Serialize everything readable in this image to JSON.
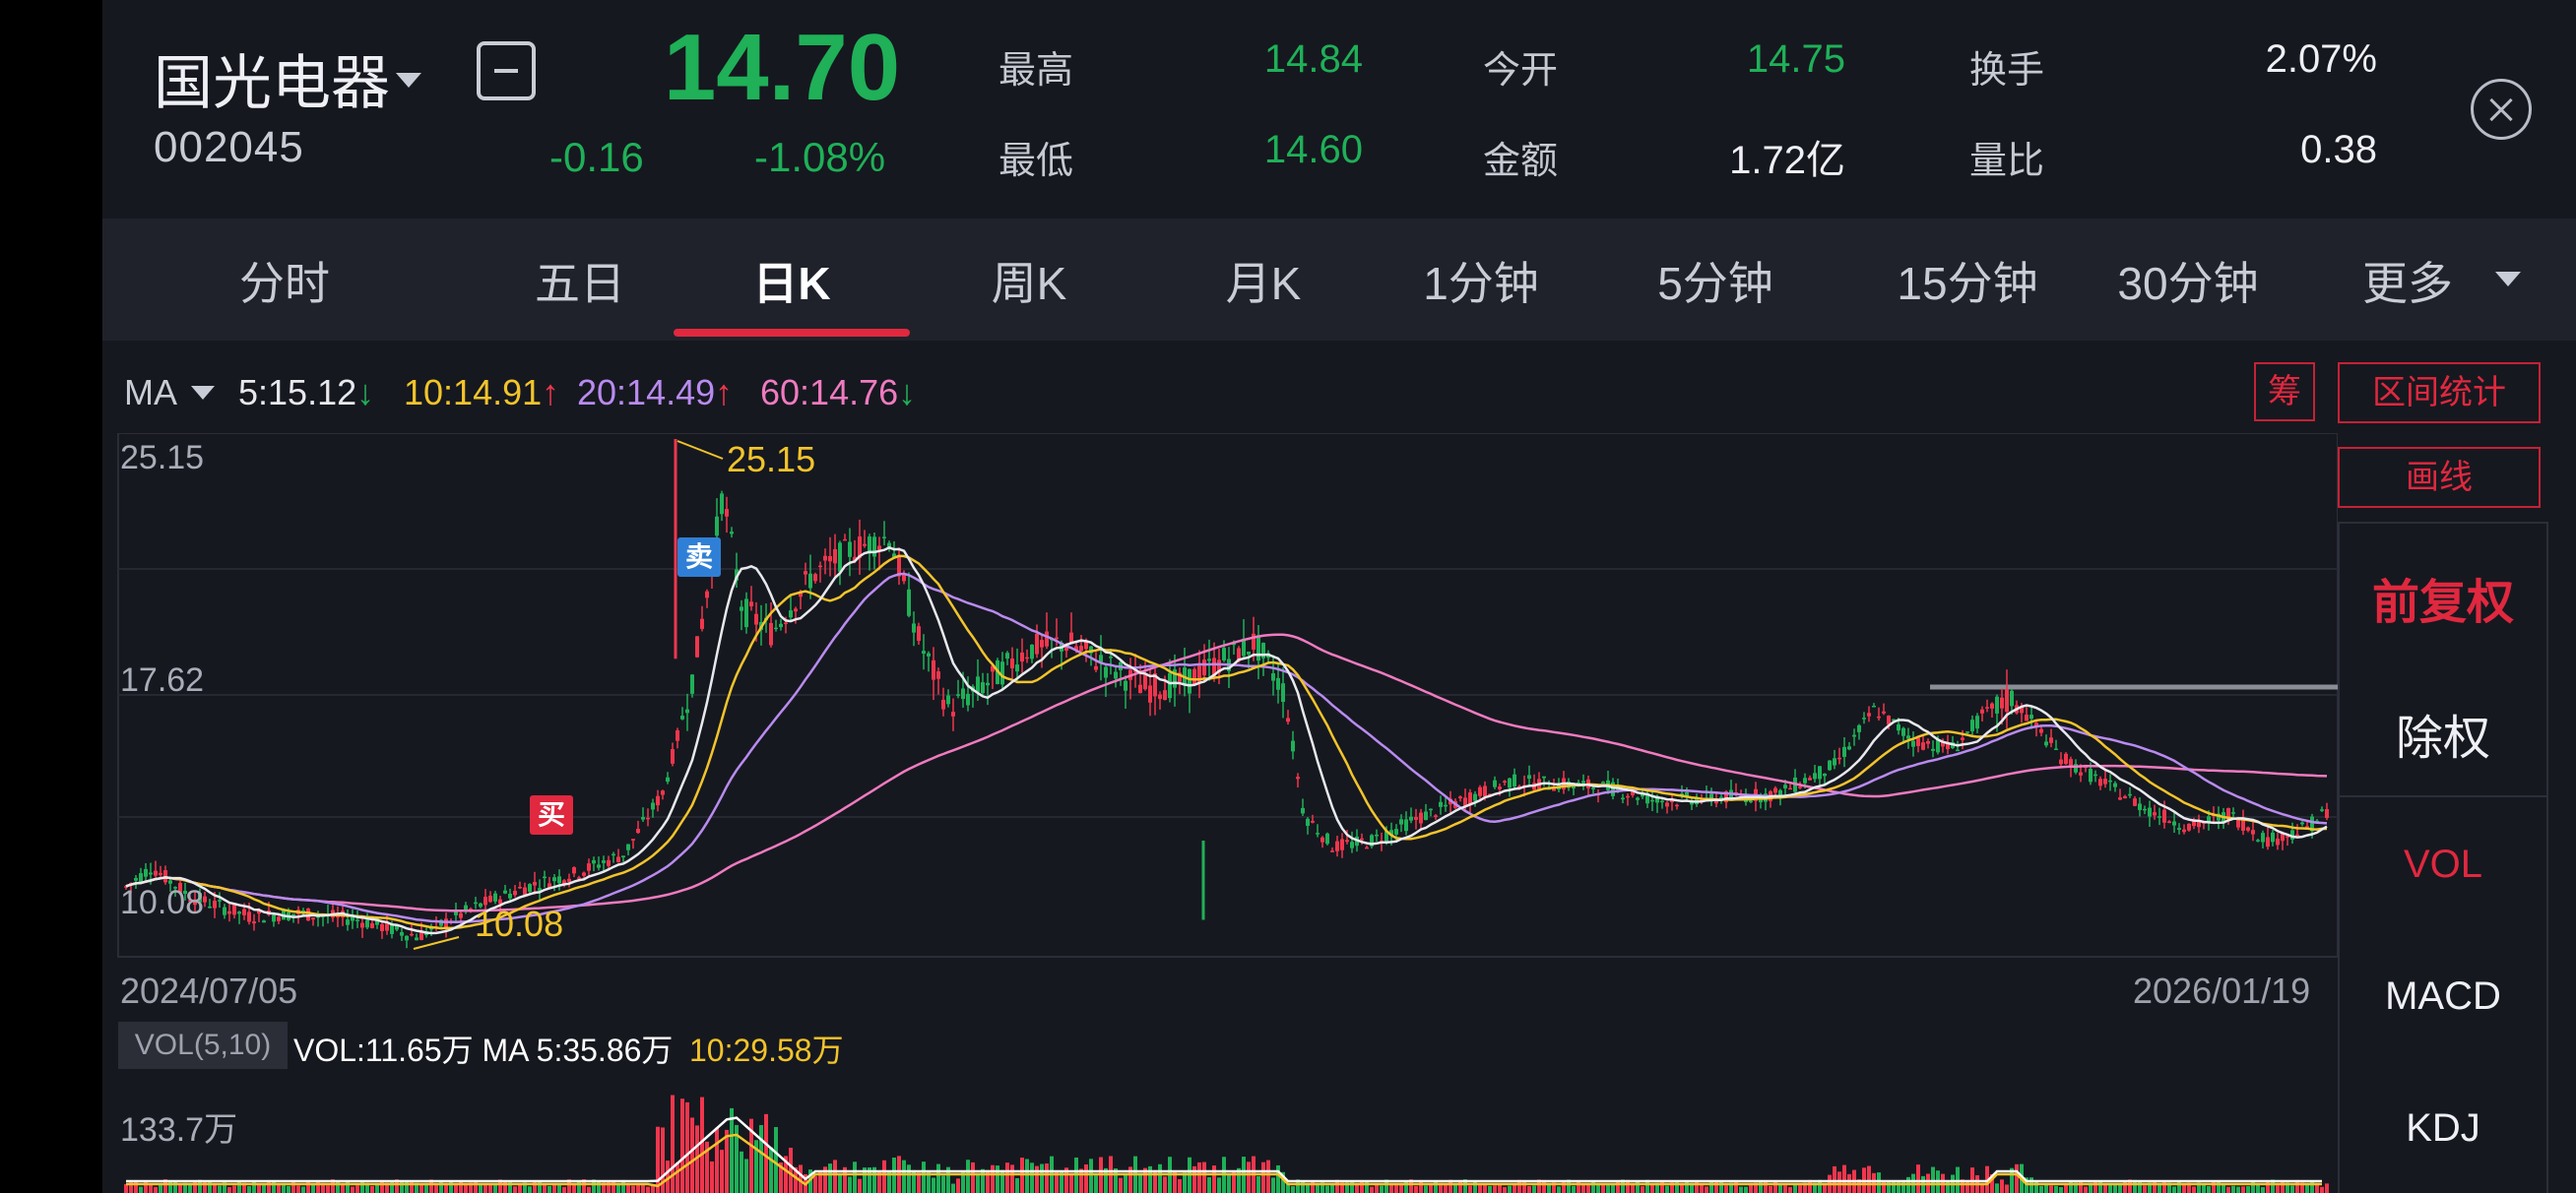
{
  "header": {
    "name": "国光电器",
    "code": "002045",
    "price": "14.70",
    "change": "-0.16",
    "change_pct": "-1.08%",
    "quotes": {
      "high_label": "最高",
      "high": "14.84",
      "low_label": "最低",
      "low": "14.60",
      "open_label": "今开",
      "open": "14.75",
      "amount_label": "金额",
      "amount": "1.72亿",
      "turnover_label": "换手",
      "turnover": "2.07%",
      "vol_ratio_label": "量比",
      "vol_ratio": "0.38"
    }
  },
  "tabs": [
    "分时",
    "五日",
    "日K",
    "周K",
    "月K",
    "1分钟",
    "5分钟",
    "15分钟",
    "30分钟",
    "更多"
  ],
  "active_tab": "日K",
  "ma": {
    "label": "MA",
    "ma5": "5:15.12",
    "ma5_arrow": "↓",
    "ma10": "10:14.91",
    "ma10_arrow": "↑",
    "ma20": "20:14.49",
    "ma20_arrow": "↑",
    "ma60": "60:14.76",
    "ma60_arrow": "↓"
  },
  "side": {
    "chips": "筹",
    "range_stats": "区间统计",
    "draw_line": "画线",
    "adjust_forward": "前复权",
    "ex_rights": "除权",
    "vol": "VOL",
    "macd": "MACD",
    "kdj": "KDJ"
  },
  "chart": {
    "y_top": "25.15",
    "y_mid": "17.62",
    "y_bottom": "10.08",
    "max_marker": "25.15",
    "min_marker": "10.08",
    "buy": "买",
    "sell": "卖",
    "date_start": "2024/07/05",
    "date_end": "2026/01/19"
  },
  "volume": {
    "legend": "VOL(5,10)",
    "main": "VOL:11.65万 MA 5:35.86万",
    "ma10": "10:29.58万",
    "axis": "133.7万"
  },
  "colors": {
    "up": "#f0364d",
    "down": "#1fb058",
    "ma5": "#e8e9ee",
    "ma10": "#f2c42b",
    "ma20": "#b98bf0",
    "ma60": "#f07bc0",
    "accent": "#e0283f"
  }
}
